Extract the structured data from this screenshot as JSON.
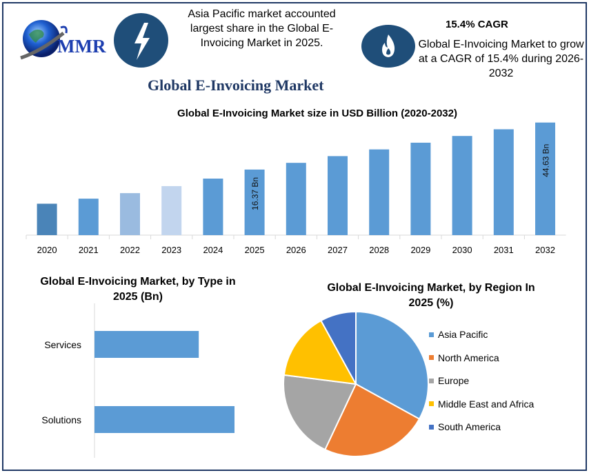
{
  "header": {
    "logo_text": "MMR",
    "left_icon": "lightning-bolt-icon",
    "left_text": "Asia Pacific market accounted largest share in the Global E-Invoicing Market in 2025.",
    "right_icon": "flame-icon",
    "right_heading": "15.4% CAGR",
    "right_text": "Global E-Invoicing Market to grow at a CAGR of 15.4% during 2026-2032",
    "main_title": "Global E-Invoicing Market"
  },
  "colors": {
    "brand": "#1f4e79",
    "bar": "#5b9bd5",
    "title": "#1f3864"
  },
  "chart_data": [
    {
      "type": "bar",
      "title": "Global E-Invoicing Market size in USD Billion (2020-2032)",
      "categories": [
        "2020",
        "2021",
        "2022",
        "2023",
        "2024",
        "2025",
        "2026",
        "2027",
        "2028",
        "2029",
        "2030",
        "2031",
        "2032"
      ],
      "values": [
        7.9,
        8.8,
        9.9,
        11.5,
        13.5,
        16.37,
        18.89,
        21.8,
        25.16,
        29.03,
        33.5,
        38.66,
        44.63
      ],
      "bar_colors": [
        "#4a84b8",
        "#5b9bd5",
        "#9abbe0",
        "#c2d5ee",
        "#5b9bd5",
        "#5b9bd5",
        "#5b9bd5",
        "#5b9bd5",
        "#5b9bd5",
        "#5b9bd5",
        "#5b9bd5",
        "#5b9bd5",
        "#5b9bd5"
      ],
      "data_labels": {
        "2025": "16.37 Bn",
        "2032": "44.63 Bn"
      },
      "y_scale": "log",
      "grid": false
    },
    {
      "type": "bar",
      "orientation": "horizontal",
      "title": "Global E-Invoicing Market, by Type in 2025 (Bn)",
      "categories": [
        "Services",
        "Solutions"
      ],
      "values": [
        7.0,
        9.4
      ],
      "color": "#5b9bd5",
      "grid": false
    },
    {
      "type": "pie",
      "title": "Global E-Invoicing Market, by Region In 2025 (%)",
      "categories": [
        "Asia Pacific",
        "North America",
        "Europe",
        "Middle East and Africa",
        "South America"
      ],
      "values": [
        33,
        24,
        20,
        15,
        8
      ],
      "colors": [
        "#5b9bd5",
        "#ed7d31",
        "#a5a5a5",
        "#ffc000",
        "#4472c4"
      ],
      "legend": "right"
    }
  ]
}
